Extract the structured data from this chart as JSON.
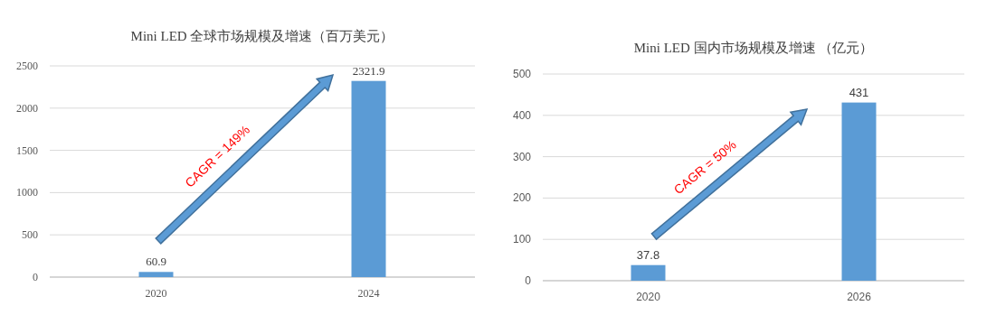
{
  "chart_data": [
    {
      "type": "bar",
      "title": "Mini LED 全球市场规模及增速（百万美元）",
      "categories": [
        "2020",
        "2024"
      ],
      "values": [
        60.9,
        2321.9
      ],
      "color": "#5b9bd5",
      "ylim": [
        0,
        2500
      ],
      "yticks": [
        0,
        500,
        1000,
        1500,
        2000,
        2500
      ],
      "grid": "y",
      "data_labels": true,
      "annotations": [
        "CAGR = 149%"
      ]
    },
    {
      "type": "bar",
      "title": "Mini LED 国内市场规模及增速 （亿元）",
      "categories": [
        "2020",
        "2026"
      ],
      "values": [
        37.8,
        431
      ],
      "color": "#5b9bd5",
      "ylim": [
        0,
        500
      ],
      "yticks": [
        0,
        100,
        200,
        300,
        400,
        500
      ],
      "grid": "y",
      "data_labels": true,
      "annotations": [
        "CAGR = 50%"
      ]
    }
  ]
}
